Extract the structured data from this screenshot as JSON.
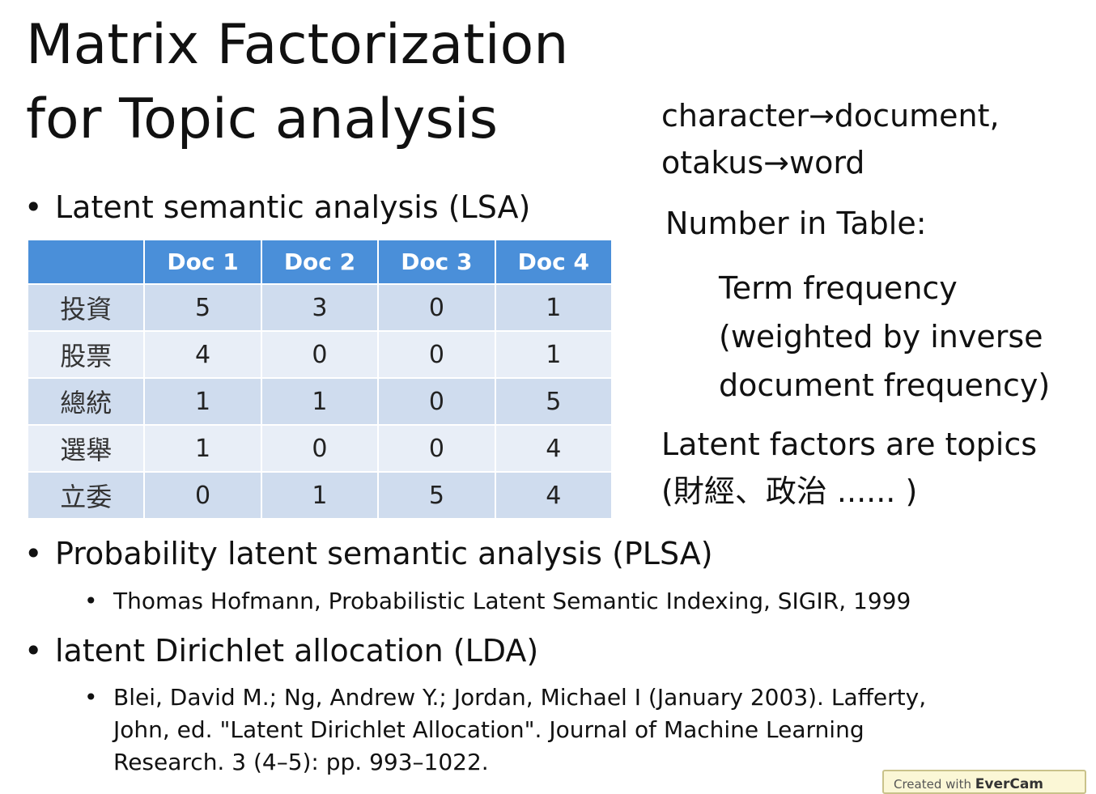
{
  "title": {
    "line1": "Matrix Factorization",
    "line2": "for Topic analysis"
  },
  "bullet_glyph": "•",
  "lsa": {
    "heading": "Latent semantic analysis (LSA)",
    "table": {
      "corner": "",
      "headers": [
        "Doc 1",
        "Doc 2",
        "Doc 3",
        "Doc 4"
      ],
      "rows": [
        {
          "label": "投資",
          "values": [
            "5",
            "3",
            "0",
            "1"
          ]
        },
        {
          "label": "股票",
          "values": [
            "4",
            "0",
            "0",
            "1"
          ]
        },
        {
          "label": "總統",
          "values": [
            "1",
            "1",
            "0",
            "5"
          ]
        },
        {
          "label": "選舉",
          "values": [
            "1",
            "0",
            "0",
            "4"
          ]
        },
        {
          "label": "立委",
          "values": [
            "0",
            "1",
            "5",
            "4"
          ]
        }
      ],
      "colors": {
        "header_bg": "#4a8fd9",
        "row_odd_bg": "#cfdcee",
        "row_even_bg": "#e8eef7"
      }
    }
  },
  "notes": {
    "mapping_line1": "character→document,",
    "mapping_line2": "otakus→word",
    "number_label": "Number in Table:",
    "tf_line1": "Term frequency",
    "tf_line2": "(weighted by inverse",
    "tf_line3": "document frequency)",
    "latent_line1": "Latent factors are topics",
    "latent_line2": "(財經、政治 ...... )"
  },
  "plsa": {
    "heading": "Probability latent semantic analysis (PLSA)",
    "reference": "Thomas Hofmann, Probabilistic Latent Semantic Indexing, SIGIR, 1999"
  },
  "lda": {
    "heading": "latent Dirichlet allocation (LDA)",
    "reference_line1": "Blei, David M.; Ng, Andrew Y.; Jordan, Michael I (January 2003). Lafferty,",
    "reference_line2": "John, ed. \"Latent Dirichlet Allocation\". Journal of Machine Learning",
    "reference_line3": "Research. 3 (4–5): pp. 993–1022."
  },
  "watermark": {
    "prefix": "Created with",
    "brand": "EverCam"
  }
}
